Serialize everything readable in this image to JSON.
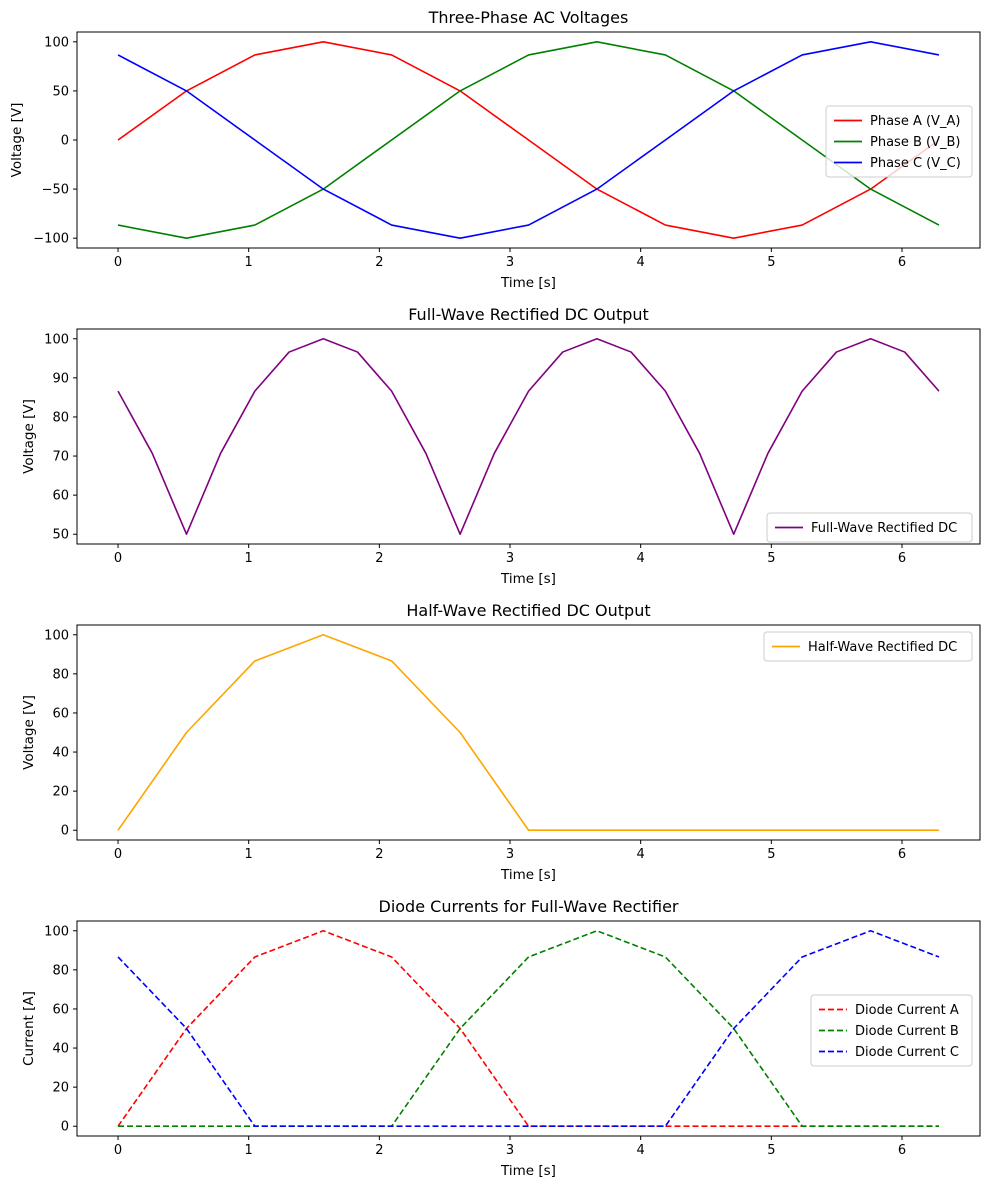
{
  "chart_data": [
    {
      "type": "line",
      "title": "Three-Phase AC Voltages",
      "xlabel": "Time [s]",
      "ylabel": "Voltage [V]",
      "xlim": [
        -0.314,
        6.597
      ],
      "ylim": [
        -110,
        110
      ],
      "xticks": [
        0,
        1,
        2,
        3,
        4,
        5,
        6
      ],
      "yticks": [
        -100,
        -50,
        0,
        50,
        100
      ],
      "grid": false,
      "legend_position": "center-right",
      "series": [
        {
          "name": "Phase A (V_A)",
          "color": "#ff0000",
          "dash": false,
          "x": [
            0,
            0.524,
            1.047,
            1.571,
            2.094,
            2.618,
            3.142,
            3.665,
            4.189,
            4.712,
            5.236,
            5.76,
            6.283
          ],
          "y": [
            0,
            50,
            86.6,
            100,
            86.6,
            50,
            0,
            -50,
            -86.6,
            -100,
            -86.6,
            -50,
            0
          ]
        },
        {
          "name": "Phase B (V_B)",
          "color": "#008000",
          "dash": false,
          "x": [
            0,
            0.524,
            1.047,
            1.571,
            2.094,
            2.618,
            3.142,
            3.665,
            4.189,
            4.712,
            5.236,
            5.76,
            6.283
          ],
          "y": [
            -86.6,
            -100,
            -86.6,
            -50,
            0,
            50,
            86.6,
            100,
            86.6,
            50,
            0,
            -50,
            -86.6
          ]
        },
        {
          "name": "Phase C (V_C)",
          "color": "#0000ff",
          "dash": false,
          "x": [
            0,
            0.524,
            1.047,
            1.571,
            2.094,
            2.618,
            3.142,
            3.665,
            4.189,
            4.712,
            5.236,
            5.76,
            6.283
          ],
          "y": [
            86.6,
            50,
            0,
            -50,
            -86.6,
            -100,
            -86.6,
            -50,
            0,
            50,
            86.6,
            100,
            86.6
          ]
        }
      ]
    },
    {
      "type": "line",
      "title": "Full-Wave Rectified DC Output",
      "xlabel": "Time [s]",
      "ylabel": "Voltage [V]",
      "xlim": [
        -0.314,
        6.597
      ],
      "ylim": [
        47.5,
        102.5
      ],
      "xticks": [
        0,
        1,
        2,
        3,
        4,
        5,
        6
      ],
      "yticks": [
        50,
        60,
        70,
        80,
        90,
        100
      ],
      "grid": false,
      "legend_position": "lower-right",
      "series": [
        {
          "name": "Full-Wave Rectified DC",
          "color": "#800080",
          "dash": false,
          "x": [
            0,
            0.262,
            0.524,
            0.785,
            1.047,
            1.309,
            1.571,
            1.833,
            2.094,
            2.356,
            2.618,
            2.88,
            3.142,
            3.403,
            3.665,
            3.927,
            4.189,
            4.451,
            4.712,
            4.974,
            5.236,
            5.498,
            5.76,
            6.021,
            6.283
          ],
          "y": [
            86.6,
            70.7,
            50,
            70.7,
            86.6,
            96.6,
            100,
            96.6,
            86.6,
            70.7,
            50,
            70.7,
            86.6,
            96.6,
            100,
            96.6,
            86.6,
            70.7,
            50,
            70.7,
            86.6,
            96.6,
            100,
            96.6,
            86.6
          ]
        }
      ]
    },
    {
      "type": "line",
      "title": "Half-Wave Rectified DC Output",
      "xlabel": "Time [s]",
      "ylabel": "Voltage [V]",
      "xlim": [
        -0.314,
        6.597
      ],
      "ylim": [
        -5,
        105
      ],
      "xticks": [
        0,
        1,
        2,
        3,
        4,
        5,
        6
      ],
      "yticks": [
        0,
        20,
        40,
        60,
        80,
        100
      ],
      "grid": false,
      "legend_position": "upper-right",
      "series": [
        {
          "name": "Half-Wave Rectified DC",
          "color": "#ffa500",
          "dash": false,
          "x": [
            0,
            0.524,
            1.047,
            1.571,
            2.094,
            2.618,
            3.142,
            6.283
          ],
          "y": [
            0,
            50,
            86.6,
            100,
            86.6,
            50,
            0,
            0
          ]
        }
      ]
    },
    {
      "type": "line",
      "title": "Diode Currents for Full-Wave Rectifier",
      "xlabel": "Time [s]",
      "ylabel": "Current [A]",
      "xlim": [
        -0.314,
        6.597
      ],
      "ylim": [
        -5,
        105
      ],
      "xticks": [
        0,
        1,
        2,
        3,
        4,
        5,
        6
      ],
      "yticks": [
        0,
        20,
        40,
        60,
        80,
        100
      ],
      "grid": false,
      "legend_position": "center-right",
      "series": [
        {
          "name": "Diode Current A",
          "color": "#ff0000",
          "dash": true,
          "x": [
            0,
            0.524,
            1.047,
            1.571,
            2.094,
            2.618,
            3.142,
            6.283
          ],
          "y": [
            0,
            50,
            86.6,
            100,
            86.6,
            50,
            0,
            0
          ]
        },
        {
          "name": "Diode Current B",
          "color": "#008000",
          "dash": true,
          "x": [
            0,
            2.094,
            2.618,
            3.142,
            3.665,
            4.189,
            4.712,
            5.236,
            6.283
          ],
          "y": [
            0,
            0,
            50,
            86.6,
            100,
            86.6,
            50,
            0,
            0
          ]
        },
        {
          "name": "Diode Current C",
          "color": "#0000ff",
          "dash": true,
          "x": [
            0,
            0.524,
            1.047,
            4.189,
            4.712,
            5.236,
            5.76,
            6.283
          ],
          "y": [
            86.6,
            50,
            0,
            0,
            50,
            86.6,
            100,
            86.6
          ]
        }
      ]
    }
  ]
}
